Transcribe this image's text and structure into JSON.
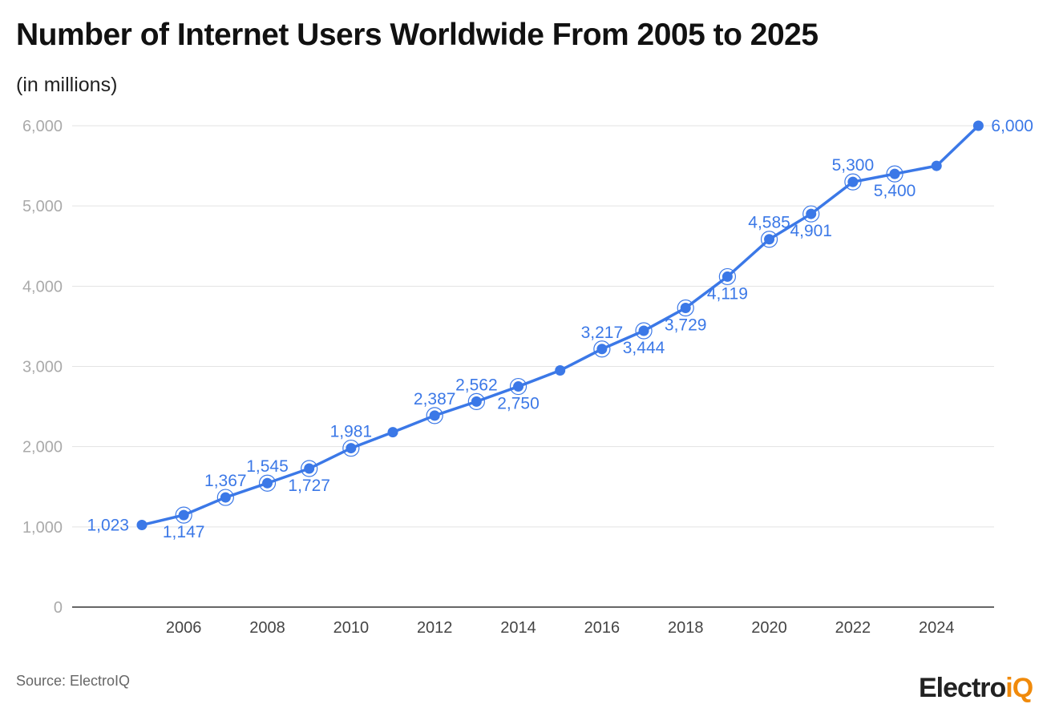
{
  "chart_data": {
    "type": "line",
    "title": "Number of Internet Users Worldwide From 2005 to 2025",
    "subtitle": "(in millions)",
    "x": [
      2005,
      2006,
      2007,
      2008,
      2009,
      2010,
      2011,
      2012,
      2013,
      2014,
      2015,
      2016,
      2017,
      2018,
      2019,
      2020,
      2021,
      2022,
      2023,
      2024,
      2025
    ],
    "values": [
      1023,
      1147,
      1367,
      1545,
      1727,
      1981,
      2180,
      2387,
      2562,
      2750,
      2950,
      3217,
      3444,
      3729,
      4119,
      4585,
      4901,
      5300,
      5400,
      5500,
      6000
    ],
    "data_labels": [
      "1,023",
      "1,147",
      "1,367",
      "1,545",
      "1,727",
      "1,981",
      null,
      "2,387",
      "2,562",
      "2,750",
      null,
      "3,217",
      "3,444",
      "3,729",
      "4,119",
      "4,585",
      "4,901",
      "5,300",
      "5,400",
      null,
      "6,000"
    ],
    "yticks": [
      "0",
      "1,000",
      "2,000",
      "3,000",
      "4,000",
      "5,000",
      "6,000"
    ],
    "ytick_values": [
      0,
      1000,
      2000,
      3000,
      4000,
      5000,
      6000
    ],
    "xticks": [
      "2006",
      "2008",
      "2010",
      "2012",
      "2014",
      "2016",
      "2018",
      "2020",
      "2022",
      "2024"
    ],
    "ylim": [
      0,
      6000
    ],
    "grid": "horizontal",
    "legend": "none",
    "color": "#3b78e7"
  },
  "footer": {
    "source": "Source: ElectroIQ",
    "logo_text": "ElectroiQ"
  }
}
